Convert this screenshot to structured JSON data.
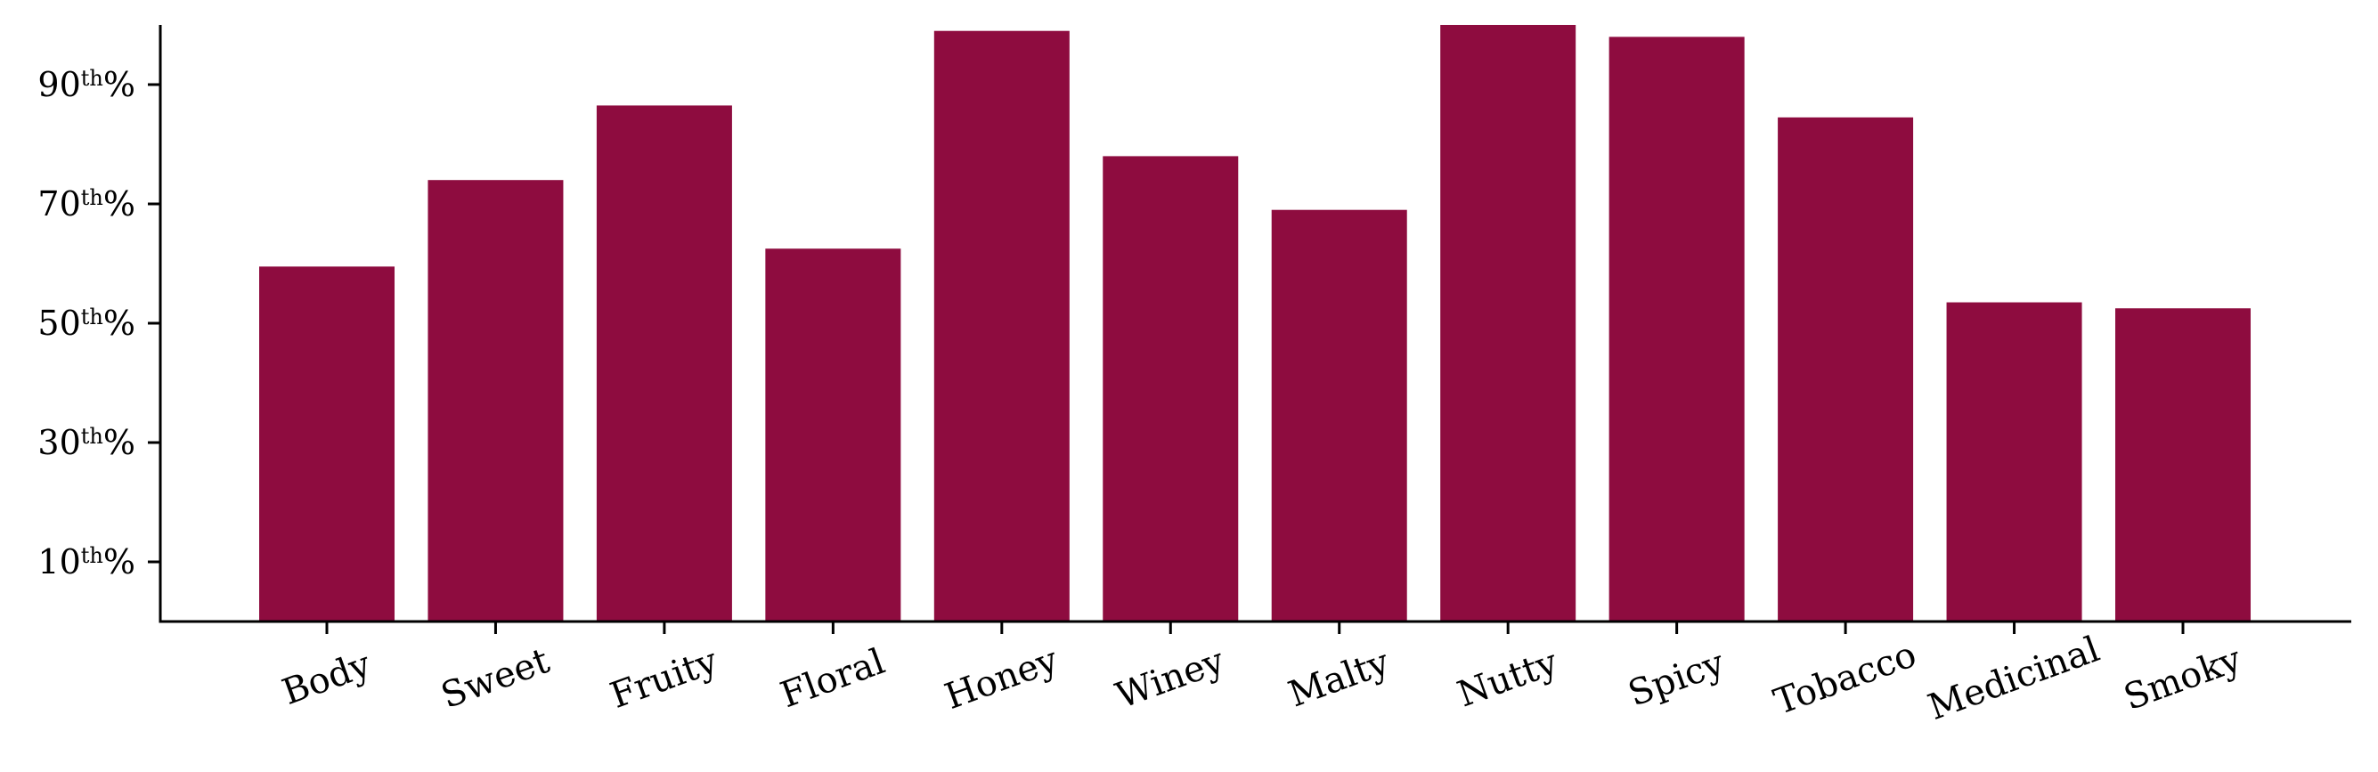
{
  "chart_data": {
    "type": "bar",
    "categories": [
      "Body",
      "Sweet",
      "Fruity",
      "Floral",
      "Honey",
      "Winey",
      "Malty",
      "Nutty",
      "Spicy",
      "Tobacco",
      "Medicinal",
      "Smoky"
    ],
    "values": [
      59.5,
      74,
      86.5,
      62.5,
      99,
      78,
      69,
      100,
      98,
      84.5,
      53.5,
      52.5
    ],
    "bar_color": "#8e0c3f",
    "ylim": [
      0,
      100
    ],
    "yticks": [
      {
        "value": 10,
        "label": "10",
        "suffix_sup": "th",
        "suffix": "%"
      },
      {
        "value": 30,
        "label": "30",
        "suffix_sup": "th",
        "suffix": "%"
      },
      {
        "value": 50,
        "label": "50",
        "suffix_sup": "th",
        "suffix": "%"
      },
      {
        "value": 70,
        "label": "70",
        "suffix_sup": "th",
        "suffix": "%"
      },
      {
        "value": 90,
        "label": "90",
        "suffix_sup": "th",
        "suffix": "%"
      }
    ],
    "xlabel_rotation": -20,
    "grid": false,
    "title": "",
    "xlabel": "",
    "ylabel": ""
  }
}
